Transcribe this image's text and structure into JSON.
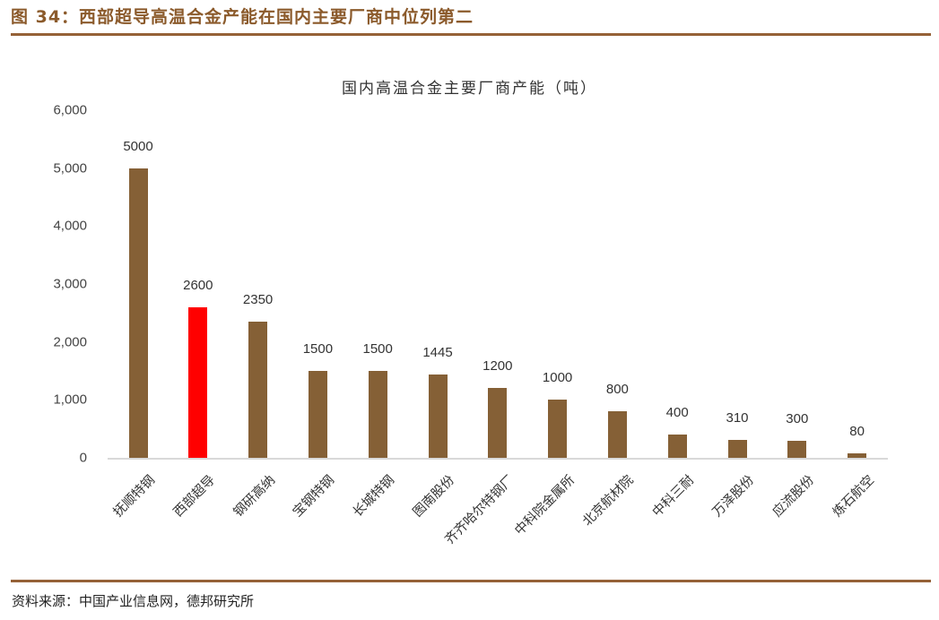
{
  "figure": {
    "title": "图 34：西部超导高温合金产能在国内主要厂商中位列第二",
    "source": "资料来源：中国产业信息网，德邦研究所"
  },
  "colors": {
    "accent_rule": "#956137",
    "bar_default": "#856036",
    "bar_highlight": "#FF0000",
    "title_text": "#8B5A2B"
  },
  "chart_data": {
    "type": "bar",
    "title": "国内高温合金主要厂商产能（吨）",
    "xlabel": "",
    "ylabel": "",
    "ylim": [
      0,
      6000
    ],
    "yticks": [
      0,
      1000,
      2000,
      3000,
      4000,
      5000,
      6000
    ],
    "ytick_labels": [
      "0",
      "1,000",
      "2,000",
      "3,000",
      "4,000",
      "5,000",
      "6,000"
    ],
    "grid": false,
    "legend": null,
    "categories": [
      "抚顺特钢",
      "西部超导",
      "钢研高纳",
      "宝钢特钢",
      "长城特钢",
      "图南股份",
      "齐齐哈尔特钢厂",
      "中科院金属所",
      "北京航材院",
      "中科三耐",
      "万泽股份",
      "应流股份",
      "炼石航空"
    ],
    "values": [
      5000,
      2600,
      2350,
      1500,
      1500,
      1445,
      1200,
      1000,
      800,
      400,
      310,
      300,
      80
    ],
    "highlight_index": 1,
    "data_labels": [
      "5000",
      "2600",
      "2350",
      "1500",
      "1500",
      "1445",
      "1200",
      "1000",
      "800",
      "400",
      "310",
      "300",
      "80"
    ]
  }
}
